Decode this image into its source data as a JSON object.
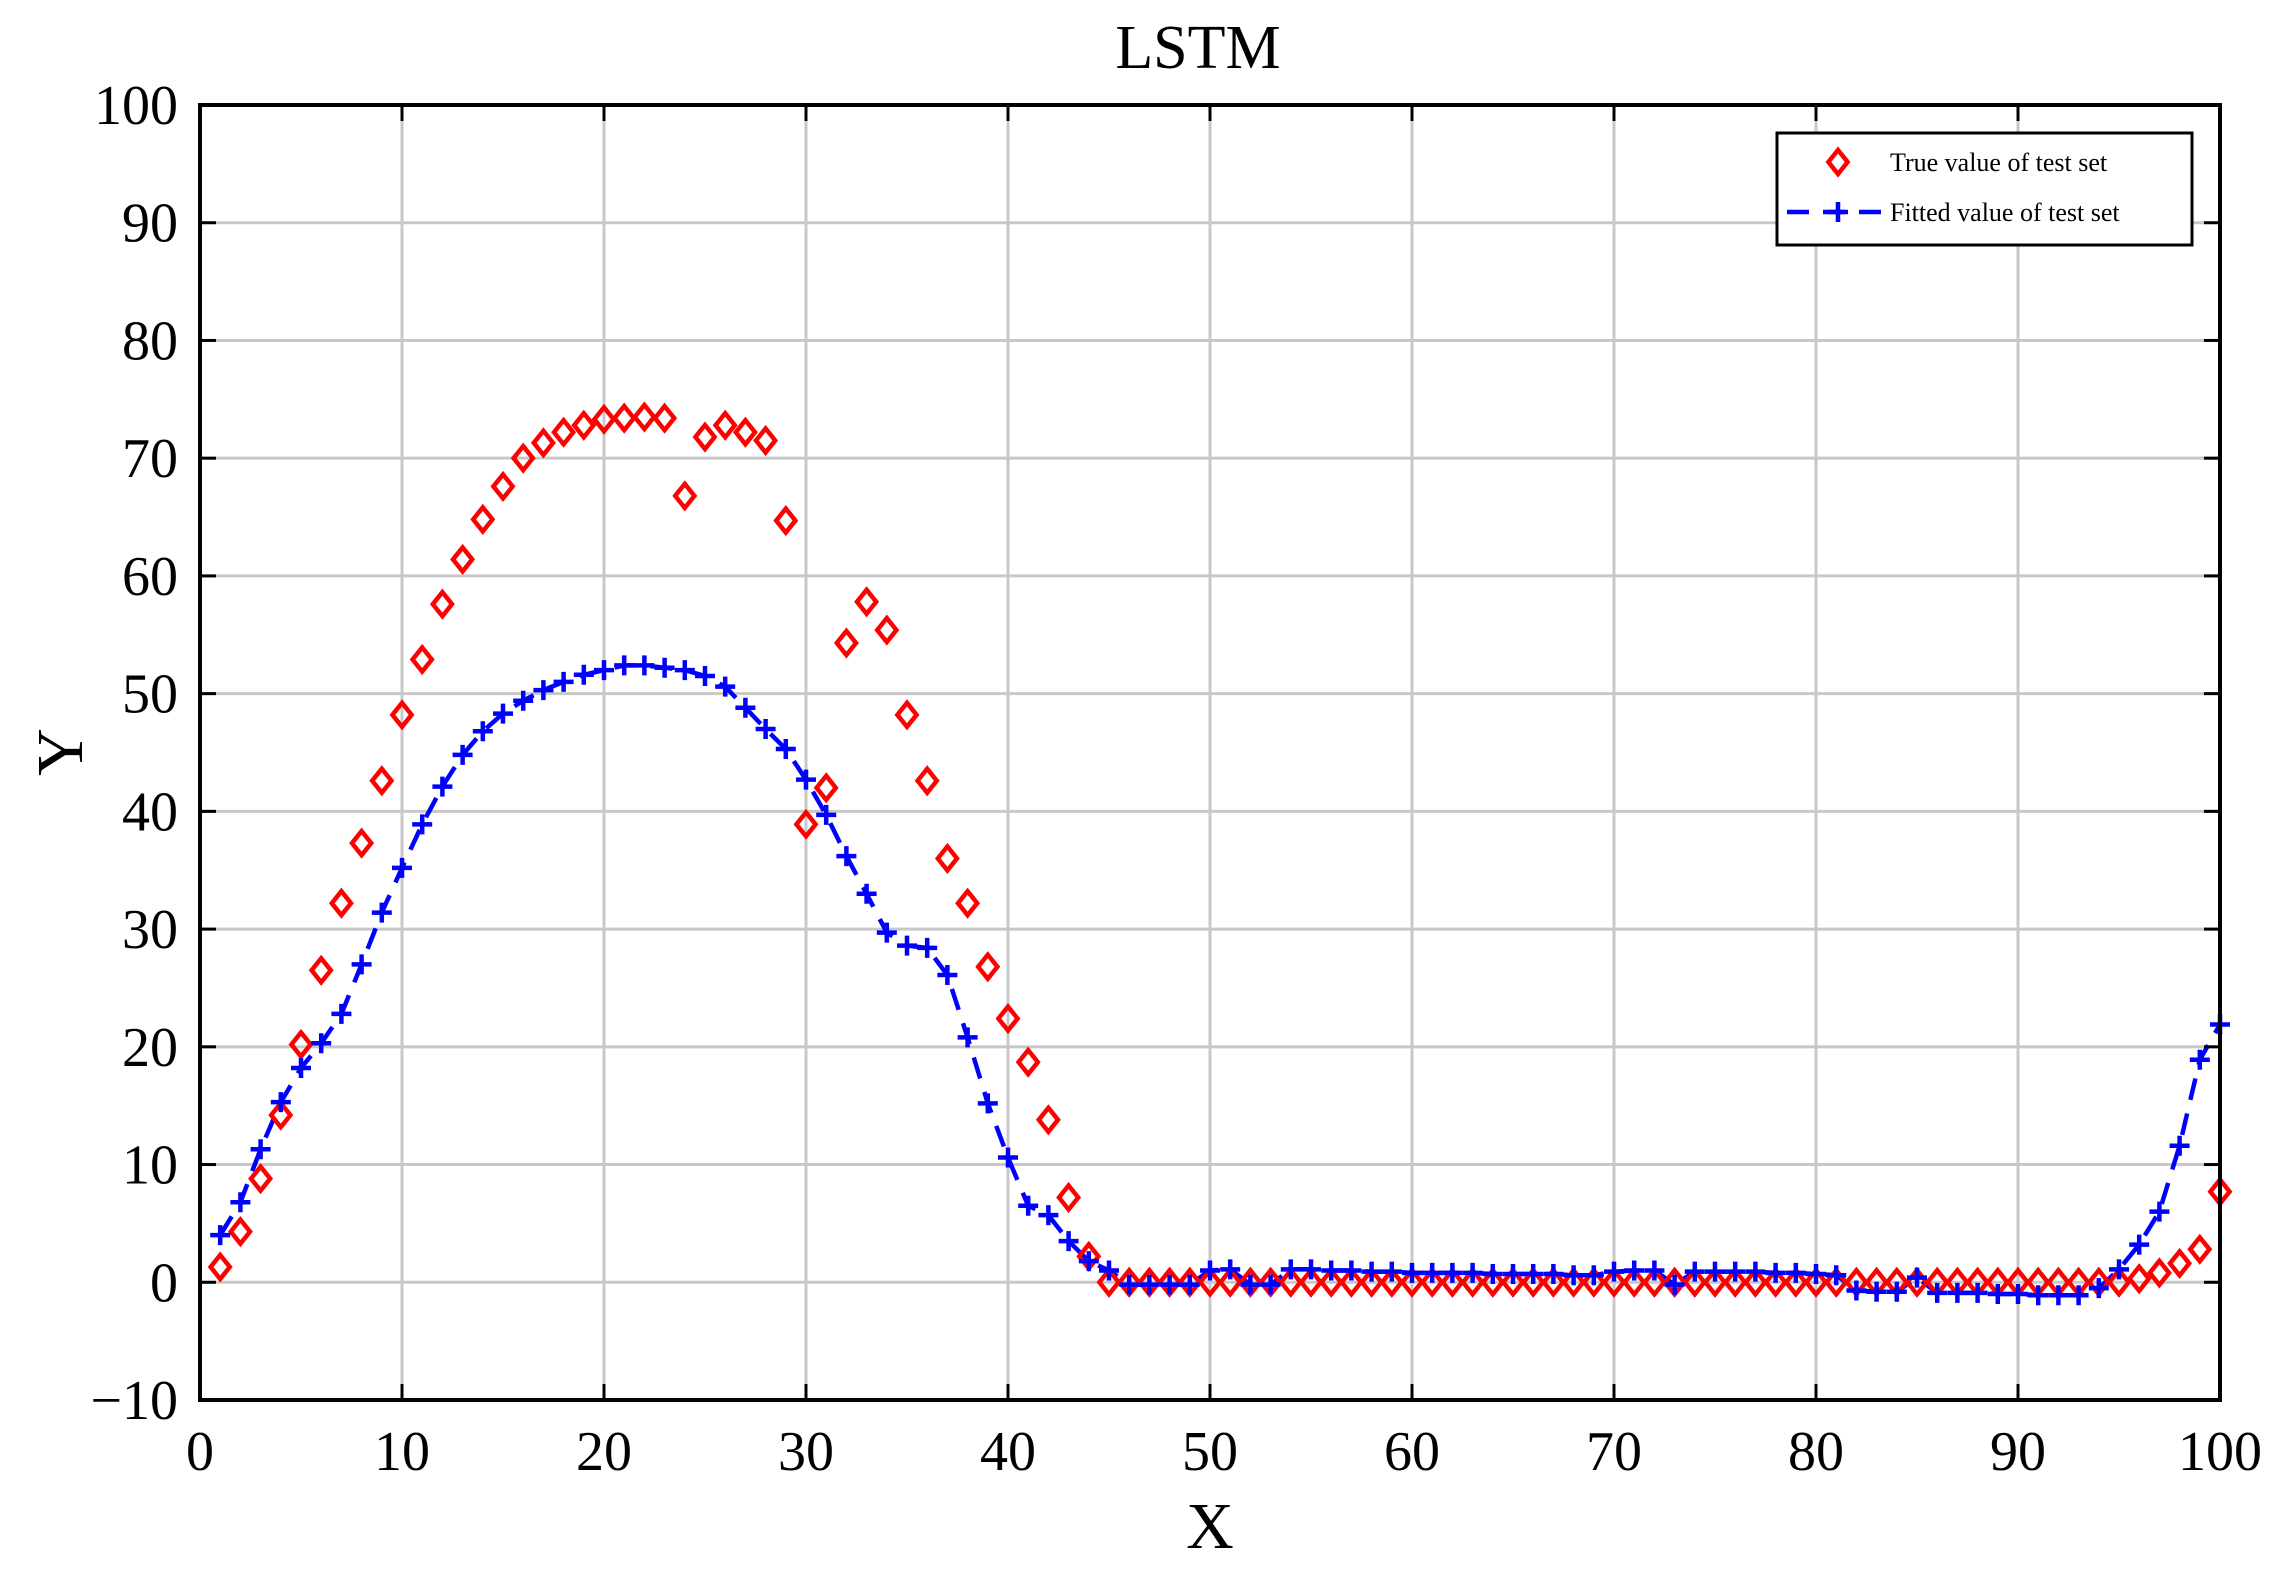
{
  "chart_data": {
    "type": "scatter",
    "title": "LSTM",
    "xlabel": "X",
    "ylabel": "Y",
    "xlim": [
      0,
      100
    ],
    "ylim": [
      -10,
      100
    ],
    "xticks": [
      0,
      10,
      20,
      30,
      40,
      50,
      60,
      70,
      80,
      90,
      100
    ],
    "yticks": [
      -10,
      0,
      10,
      20,
      30,
      40,
      50,
      60,
      70,
      80,
      90,
      100
    ],
    "xtick_labels": [
      "0",
      "10",
      "20",
      "30",
      "40",
      "50",
      "60",
      "70",
      "80",
      "90",
      "100"
    ],
    "ytick_labels": [
      "−10",
      "0",
      "10",
      "20",
      "30",
      "40",
      "50",
      "60",
      "70",
      "80",
      "90",
      "100"
    ],
    "grid": true,
    "legend_position": "top-right",
    "series": [
      {
        "name": "True value of test set",
        "marker": "diamond",
        "line": "none",
        "color": "#ff0000",
        "x": [
          1,
          2,
          3,
          4,
          5,
          6,
          7,
          8,
          9,
          10,
          11,
          12,
          13,
          14,
          15,
          16,
          17,
          18,
          19,
          20,
          21,
          22,
          23,
          24,
          25,
          26,
          27,
          28,
          29,
          30,
          31,
          32,
          33,
          34,
          35,
          36,
          37,
          38,
          39,
          40,
          41,
          42,
          43,
          44,
          45,
          46,
          47,
          48,
          49,
          50,
          51,
          52,
          53,
          54,
          55,
          56,
          57,
          58,
          59,
          60,
          61,
          62,
          63,
          64,
          65,
          66,
          67,
          68,
          69,
          70,
          71,
          72,
          73,
          74,
          75,
          76,
          77,
          78,
          79,
          80,
          81,
          82,
          83,
          84,
          85,
          86,
          87,
          88,
          89,
          90,
          91,
          92,
          93,
          94,
          95,
          96,
          97,
          98,
          99,
          100
        ],
        "values": [
          1.3,
          4.3,
          8.8,
          14.2,
          20.2,
          26.5,
          32.2,
          37.3,
          42.6,
          48.2,
          52.9,
          57.6,
          61.4,
          64.8,
          67.6,
          70.0,
          71.3,
          72.2,
          72.8,
          73.3,
          73.4,
          73.5,
          73.4,
          66.8,
          71.8,
          72.8,
          72.2,
          71.5,
          64.7,
          38.9,
          42.0,
          54.3,
          57.8,
          55.4,
          48.2,
          42.6,
          36.0,
          32.2,
          26.8,
          22.4,
          18.7,
          13.8,
          7.2,
          2.2,
          0,
          0,
          0,
          0,
          0,
          0,
          0,
          0,
          0,
          0,
          0,
          0,
          0,
          0,
          0,
          0,
          0,
          0,
          0,
          0,
          0,
          0,
          0,
          0,
          0,
          0,
          0,
          0,
          0,
          0,
          0,
          0,
          0,
          0,
          0,
          0,
          0,
          0,
          0,
          0,
          0,
          0,
          0,
          0,
          0,
          0,
          0,
          0,
          0,
          0,
          0,
          0.3,
          0.8,
          1.6,
          2.8,
          7.7
        ]
      },
      {
        "name": "Fitted value of test set",
        "marker": "plus",
        "line": "dashed",
        "color": "#0000ff",
        "x": [
          1,
          2,
          3,
          4,
          5,
          6,
          7,
          8,
          9,
          10,
          11,
          12,
          13,
          14,
          15,
          16,
          17,
          18,
          19,
          20,
          21,
          22,
          23,
          24,
          25,
          26,
          27,
          28,
          29,
          30,
          31,
          32,
          33,
          34,
          35,
          36,
          37,
          38,
          39,
          40,
          41,
          42,
          43,
          44,
          45,
          46,
          47,
          48,
          49,
          50,
          51,
          52,
          53,
          54,
          55,
          56,
          57,
          58,
          59,
          60,
          61,
          62,
          63,
          64,
          65,
          66,
          67,
          68,
          69,
          70,
          71,
          72,
          73,
          74,
          75,
          76,
          77,
          78,
          79,
          80,
          81,
          82,
          83,
          84,
          85,
          86,
          87,
          88,
          89,
          90,
          91,
          92,
          93,
          94,
          95,
          96,
          97,
          98,
          99,
          100
        ],
        "values": [
          4.0,
          6.8,
          11.3,
          15.3,
          18.2,
          20.3,
          22.8,
          27.0,
          31.4,
          35.2,
          38.9,
          42.1,
          44.8,
          46.8,
          48.3,
          49.4,
          50.3,
          51.0,
          51.6,
          52.0,
          52.4,
          52.4,
          52.2,
          52.0,
          51.5,
          50.6,
          48.8,
          47.0,
          45.3,
          42.7,
          39.7,
          36.2,
          33.0,
          29.7,
          28.6,
          28.4,
          26.1,
          20.8,
          15.2,
          10.6,
          6.5,
          5.7,
          3.5,
          1.8,
          1.0,
          -0.2,
          -0.2,
          -0.2,
          -0.2,
          1.0,
          1.1,
          -0.2,
          -0.2,
          1.1,
          1.1,
          1.0,
          1.0,
          0.9,
          0.9,
          0.8,
          0.8,
          0.8,
          0.8,
          0.7,
          0.7,
          0.7,
          0.7,
          0.6,
          0.6,
          0.9,
          1.0,
          1.0,
          -0.2,
          0.9,
          0.9,
          0.9,
          0.9,
          0.8,
          0.8,
          0.7,
          0.6,
          -0.7,
          -0.8,
          -0.8,
          0.4,
          -0.9,
          -0.9,
          -0.9,
          -1.0,
          -1.0,
          -1.1,
          -1.1,
          -1.1,
          -0.5,
          1.1,
          3.2,
          6.0,
          11.6,
          18.9,
          21.9
        ]
      }
    ]
  }
}
